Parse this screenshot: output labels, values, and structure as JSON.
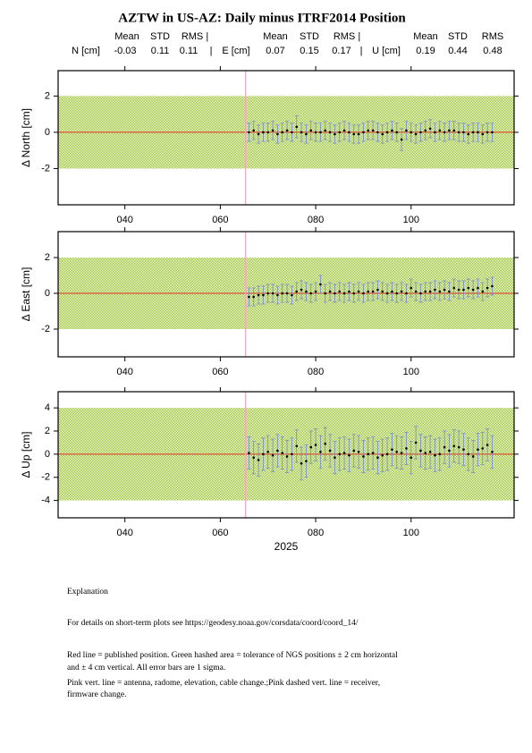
{
  "title": "AZTW in US-AZ: Daily minus ITRF2014 Position",
  "stats": {
    "header": [
      "Mean",
      "STD",
      "RMS |",
      "Mean",
      "STD",
      "RMS |",
      "Mean",
      "STD",
      "RMS"
    ],
    "row_labels": [
      "N [cm]",
      "E [cm]",
      "U [cm]"
    ],
    "separator": "|",
    "values": [
      [
        -0.03,
        0.11,
        0.11
      ],
      [
        0.07,
        0.15,
        0.17
      ],
      [
        0.19,
        0.44,
        0.48
      ]
    ]
  },
  "chart_data": [
    {
      "type": "scatter",
      "ylabel": "Δ North  [cm]",
      "x": [
        66,
        67,
        68,
        69,
        70,
        71,
        72,
        73,
        74,
        75,
        76,
        77,
        78,
        79,
        80,
        81,
        82,
        83,
        84,
        85,
        86,
        87,
        88,
        89,
        90,
        91,
        92,
        93,
        94,
        95,
        96,
        97,
        98,
        99,
        100,
        101,
        102,
        103,
        104,
        105,
        106,
        107,
        108,
        109,
        110,
        111,
        112,
        113,
        114,
        115,
        116,
        117
      ],
      "values": [
        0.0,
        0.1,
        -0.1,
        0.0,
        0.0,
        0.1,
        -0.1,
        0.0,
        0.1,
        0.0,
        0.3,
        0.0,
        -0.1,
        0.1,
        0.0,
        0.0,
        0.1,
        0.0,
        -0.1,
        0.0,
        0.1,
        0.0,
        -0.1,
        -0.1,
        0.0,
        0.1,
        0.1,
        0.0,
        -0.1,
        0.0,
        0.1,
        0.0,
        -0.4,
        0.1,
        0.0,
        -0.1,
        0.0,
        0.1,
        0.2,
        0.0,
        0.1,
        0.0,
        0.1,
        0.1,
        0.0,
        0.0,
        -0.1,
        0.0,
        0.0,
        -0.1,
        0.0,
        0.0
      ],
      "errors": [
        0.5,
        0.5,
        0.5,
        0.5,
        0.5,
        0.5,
        0.5,
        0.5,
        0.5,
        0.5,
        0.6,
        0.5,
        0.5,
        0.5,
        0.5,
        0.5,
        0.5,
        0.5,
        0.5,
        0.5,
        0.5,
        0.5,
        0.5,
        0.5,
        0.5,
        0.5,
        0.5,
        0.5,
        0.5,
        0.5,
        0.5,
        0.5,
        0.6,
        0.5,
        0.5,
        0.5,
        0.5,
        0.5,
        0.5,
        0.5,
        0.5,
        0.5,
        0.5,
        0.5,
        0.5,
        0.5,
        0.5,
        0.5,
        0.5,
        0.5,
        0.5,
        0.5
      ],
      "xlim": [
        26,
        121.6
      ],
      "ylim": [
        -4,
        3.4
      ],
      "xticks": [
        {
          "value": 40,
          "label": "040"
        },
        {
          "value": 60,
          "label": "060"
        },
        {
          "value": 80,
          "label": "080"
        },
        {
          "value": 100,
          "label": "100"
        }
      ],
      "yticks": [
        -2,
        0,
        2
      ],
      "tolerance": [
        -2,
        2
      ],
      "reference": 0,
      "equipment_change": 65.3
    },
    {
      "type": "scatter",
      "ylabel": "Δ East  [cm]",
      "x": [
        66,
        67,
        68,
        69,
        70,
        71,
        72,
        73,
        74,
        75,
        76,
        77,
        78,
        79,
        80,
        81,
        82,
        83,
        84,
        85,
        86,
        87,
        88,
        89,
        90,
        91,
        92,
        93,
        94,
        95,
        96,
        97,
        98,
        99,
        100,
        101,
        102,
        103,
        104,
        105,
        106,
        107,
        108,
        109,
        110,
        111,
        112,
        113,
        114,
        115,
        116,
        117
      ],
      "values": [
        -0.2,
        -0.2,
        -0.1,
        -0.1,
        0.0,
        0.0,
        -0.1,
        0.0,
        0.0,
        -0.1,
        0.1,
        0.2,
        0.1,
        0.0,
        0.1,
        0.5,
        0.0,
        0.1,
        0.0,
        0.1,
        0.0,
        0.1,
        0.0,
        0.1,
        0.0,
        0.1,
        0.1,
        0.2,
        0.1,
        0.0,
        0.1,
        0.0,
        0.1,
        0.0,
        0.3,
        0.1,
        0.0,
        0.1,
        0.1,
        0.2,
        0.1,
        0.2,
        0.1,
        0.3,
        0.2,
        0.2,
        0.3,
        0.2,
        0.3,
        0.1,
        0.3,
        0.4
      ],
      "errors": [
        0.5,
        0.5,
        0.5,
        0.5,
        0.5,
        0.5,
        0.5,
        0.5,
        0.5,
        0.5,
        0.5,
        0.5,
        0.5,
        0.5,
        0.5,
        0.5,
        0.5,
        0.5,
        0.5,
        0.5,
        0.5,
        0.5,
        0.5,
        0.5,
        0.5,
        0.5,
        0.5,
        0.5,
        0.5,
        0.5,
        0.5,
        0.5,
        0.5,
        0.5,
        0.5,
        0.5,
        0.5,
        0.5,
        0.5,
        0.5,
        0.5,
        0.5,
        0.5,
        0.5,
        0.5,
        0.5,
        0.5,
        0.5,
        0.5,
        0.5,
        0.5,
        0.5
      ],
      "xlim": [
        26,
        121.6
      ],
      "ylim": [
        -3.55,
        3.45
      ],
      "xticks": [
        {
          "value": 40,
          "label": "040"
        },
        {
          "value": 60,
          "label": "060"
        },
        {
          "value": 80,
          "label": "080"
        },
        {
          "value": 100,
          "label": "100"
        }
      ],
      "yticks": [
        -2,
        0,
        2
      ],
      "tolerance": [
        -2,
        2
      ],
      "reference": 0,
      "equipment_change": 65.3
    },
    {
      "type": "scatter",
      "ylabel": "Δ Up  [cm]",
      "xlabel": "2025",
      "x": [
        66,
        67,
        68,
        69,
        70,
        71,
        72,
        73,
        74,
        75,
        76,
        77,
        78,
        79,
        80,
        81,
        82,
        83,
        84,
        85,
        86,
        87,
        88,
        89,
        90,
        91,
        92,
        93,
        94,
        95,
        96,
        97,
        98,
        99,
        100,
        101,
        102,
        103,
        104,
        105,
        106,
        107,
        108,
        109,
        110,
        111,
        112,
        113,
        114,
        115,
        116,
        117
      ],
      "values": [
        0.1,
        -0.3,
        -0.5,
        0.0,
        0.2,
        -0.1,
        0.3,
        0.1,
        -0.2,
        0.0,
        0.7,
        -0.8,
        -0.6,
        0.6,
        0.8,
        0.2,
        0.9,
        0.3,
        -0.3,
        0.0,
        0.1,
        -0.1,
        0.3,
        0.2,
        -0.2,
        0.0,
        0.1,
        -0.3,
        -0.1,
        0.0,
        0.4,
        0.2,
        0.1,
        0.5,
        -0.3,
        1.0,
        0.3,
        0.1,
        0.2,
        -0.1,
        0.0,
        0.6,
        0.3,
        0.7,
        0.6,
        0.4,
        0.0,
        -0.2,
        0.4,
        0.5,
        0.8,
        0.2
      ],
      "errors": [
        1.4,
        1.4,
        1.4,
        1.4,
        1.4,
        1.4,
        1.4,
        1.4,
        1.4,
        1.4,
        1.4,
        1.4,
        1.4,
        1.4,
        1.4,
        1.4,
        1.4,
        1.4,
        1.4,
        1.4,
        1.4,
        1.4,
        1.4,
        1.4,
        1.4,
        1.4,
        1.4,
        1.4,
        1.4,
        1.4,
        1.4,
        1.4,
        1.4,
        1.4,
        1.4,
        1.4,
        1.4,
        1.4,
        1.4,
        1.4,
        1.4,
        1.4,
        1.4,
        1.4,
        1.4,
        1.4,
        1.4,
        1.4,
        1.4,
        1.4,
        1.4,
        1.4
      ],
      "xlim": [
        26,
        121.6
      ],
      "ylim": [
        -5.5,
        5.4
      ],
      "xticks": [
        {
          "value": 40,
          "label": "040"
        },
        {
          "value": 60,
          "label": "060"
        },
        {
          "value": 80,
          "label": "080"
        },
        {
          "value": 100,
          "label": "100"
        }
      ],
      "yticks": [
        -4,
        -2,
        0,
        2,
        4
      ],
      "tolerance": [
        -4,
        4
      ],
      "reference": 0,
      "equipment_change": 65.3
    }
  ],
  "explanation": [
    "Explanation",
    "For details on short-term plots see https://geodesy.noaa.gov/corsdata/coord/coord_14/",
    "Red line = published position.  Green hashed area = tolerance of NGS positions ± 2 cm horizontal",
    "and ± 4 cm vertical.  All error bars are 1 sigma.",
    "Pink vert. line = antenna, radome, elevation, cable change.;Pink dashed vert. line = receiver,",
    "firmware change."
  ]
}
